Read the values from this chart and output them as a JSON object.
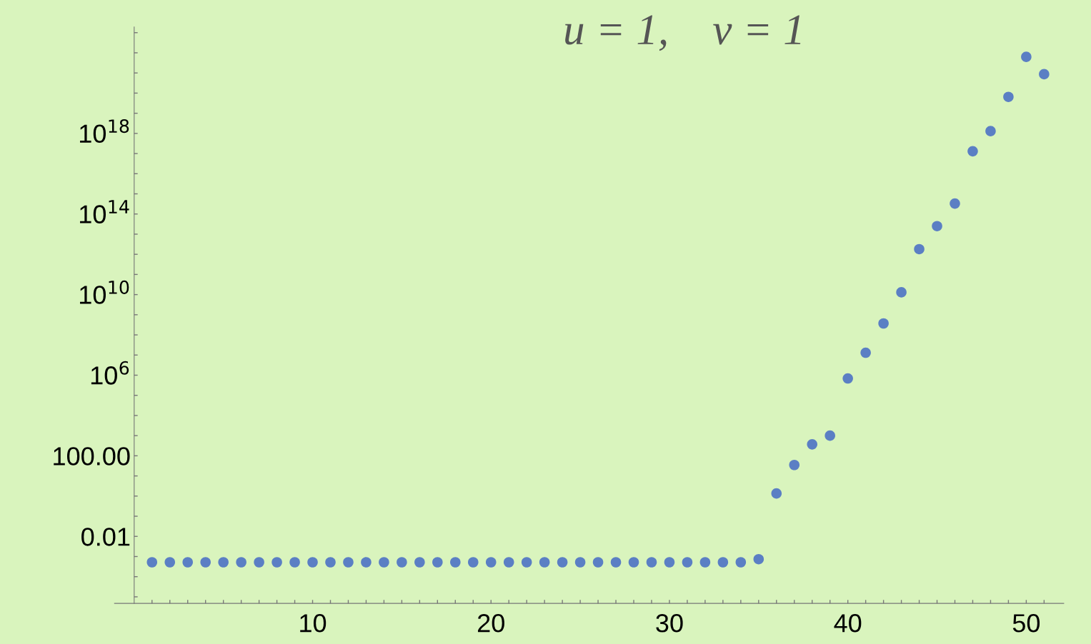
{
  "chart_data": {
    "type": "scatter",
    "title": "u = 1,    v = 1",
    "log": "y",
    "marker": "circle",
    "grid": false,
    "x": [
      1,
      2,
      3,
      4,
      5,
      6,
      7,
      8,
      9,
      10,
      11,
      12,
      13,
      14,
      15,
      16,
      17,
      18,
      19,
      20,
      21,
      22,
      23,
      24,
      25,
      26,
      27,
      28,
      29,
      30,
      31,
      32,
      33,
      34,
      35,
      36,
      37,
      38,
      39,
      40,
      41,
      42,
      43,
      44,
      45,
      46,
      47,
      48,
      49,
      50,
      51
    ],
    "series": [
      {
        "color": "#5b7fc4",
        "values": [
          0.00052,
          0.00052,
          0.00052,
          0.00052,
          0.00052,
          0.00052,
          0.00052,
          0.00052,
          0.00052,
          0.00052,
          0.00052,
          0.00052,
          0.00052,
          0.00052,
          0.00052,
          0.00052,
          0.00052,
          0.00052,
          0.00052,
          0.00052,
          0.00052,
          0.00052,
          0.00052,
          0.00052,
          0.00052,
          0.00052,
          0.00052,
          0.00052,
          0.00052,
          0.00052,
          0.00052,
          0.00052,
          0.00052,
          0.00052,
          0.00074,
          1.35,
          35,
          370,
          1000,
          690000.0,
          13000000.0,
          370000000.0,
          13000000000.0,
          1800000000000.0,
          25000000000000.0,
          330000000000000.0,
          1.3e+17,
          1.3e+18,
          6.5e+19,
          6.3e+21,
          8.7e+20
        ]
      }
    ],
    "xlim": [
      -1.1,
      52.1
    ],
    "ylim": [
      4.7e-06,
      1.9e+23
    ],
    "xticks": [
      {
        "value": 1,
        "label": null
      },
      {
        "value": 2,
        "label": null
      },
      {
        "value": 3,
        "label": null
      },
      {
        "value": 4,
        "label": null
      },
      {
        "value": 5,
        "label": null
      },
      {
        "value": 6,
        "label": null
      },
      {
        "value": 7,
        "label": null
      },
      {
        "value": 8,
        "label": null
      },
      {
        "value": 9,
        "label": null
      },
      10,
      {
        "value": 11,
        "label": null
      },
      {
        "value": 12,
        "label": null
      },
      {
        "value": 13,
        "label": null
      },
      {
        "value": 14,
        "label": null
      },
      {
        "value": 15,
        "label": null
      },
      {
        "value": 16,
        "label": null
      },
      {
        "value": 17,
        "label": null
      },
      {
        "value": 18,
        "label": null
      },
      {
        "value": 19,
        "label": null
      },
      20,
      {
        "value": 21,
        "label": null
      },
      {
        "value": 22,
        "label": null
      },
      {
        "value": 23,
        "label": null
      },
      {
        "value": 24,
        "label": null
      },
      {
        "value": 25,
        "label": null
      },
      {
        "value": 26,
        "label": null
      },
      {
        "value": 27,
        "label": null
      },
      {
        "value": 28,
        "label": null
      },
      {
        "value": 29,
        "label": null
      },
      30,
      {
        "value": 31,
        "label": null
      },
      {
        "value": 32,
        "label": null
      },
      {
        "value": 33,
        "label": null
      },
      {
        "value": 34,
        "label": null
      },
      {
        "value": 35,
        "label": null
      },
      {
        "value": 36,
        "label": null
      },
      {
        "value": 37,
        "label": null
      },
      {
        "value": 38,
        "label": null
      },
      {
        "value": 39,
        "label": null
      },
      40,
      {
        "value": 41,
        "label": null
      },
      {
        "value": 42,
        "label": null
      },
      {
        "value": 43,
        "label": null
      },
      {
        "value": 44,
        "label": null
      },
      {
        "value": 45,
        "label": null
      },
      {
        "value": 46,
        "label": null
      },
      {
        "value": 47,
        "label": null
      },
      {
        "value": 48,
        "label": null
      },
      {
        "value": 49,
        "label": null
      },
      50,
      {
        "value": 51,
        "label": null
      }
    ],
    "yticks": [
      {
        "value": 1e-05,
        "label": null
      },
      {
        "value": 0.0001,
        "label": null
      },
      {
        "value": 0.001,
        "label": null
      },
      {
        "value": 0.01,
        "label": "0.01"
      },
      {
        "value": 0.1,
        "label": null
      },
      {
        "value": 1,
        "label": null
      },
      {
        "value": 10,
        "label": null
      },
      {
        "value": 100,
        "label": "100.00"
      },
      {
        "value": 1000.0,
        "label": null
      },
      {
        "value": 10000.0,
        "label": null
      },
      {
        "value": 100000.0,
        "label": null
      },
      {
        "value": 1000000.0,
        "label": "10$^{6}$"
      },
      {
        "value": 10000000.0,
        "label": null
      },
      {
        "value": 100000000.0,
        "label": null
      },
      {
        "value": 1000000000.0,
        "label": null
      },
      {
        "value": 10000000000.0,
        "label": "10$^{10}$"
      },
      {
        "value": 100000000000.0,
        "label": null
      },
      {
        "value": 1000000000000.0,
        "label": null
      },
      {
        "value": 10000000000000.0,
        "label": null
      },
      {
        "value": 100000000000000.0,
        "label": "10$^{14}$"
      },
      {
        "value": 1000000000000000.0,
        "label": null
      },
      {
        "value": 1e+16,
        "label": null
      },
      {
        "value": 1e+17,
        "label": null
      },
      {
        "value": 1e+18,
        "label": "10$^{18}$"
      },
      {
        "value": 1e+19,
        "label": null
      },
      {
        "value": 1e+20,
        "label": null
      },
      {
        "value": 1e+21,
        "label": null
      },
      {
        "value": 1e+22,
        "label": null
      },
      {
        "value": 1e+23,
        "label": null
      }
    ]
  }
}
